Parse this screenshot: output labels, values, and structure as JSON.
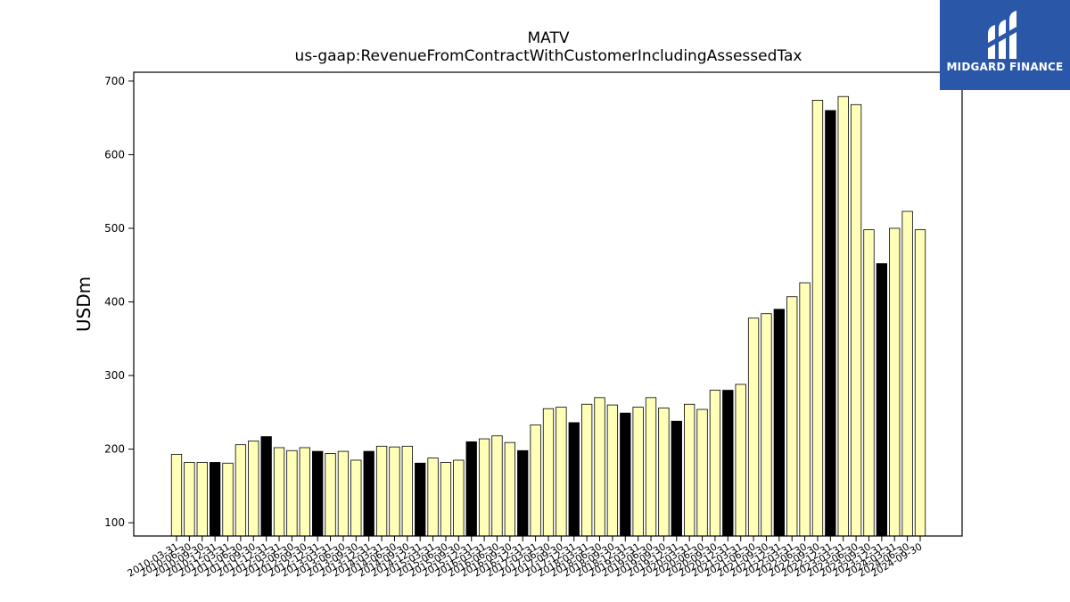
{
  "chart_data": {
    "type": "bar",
    "title": "MATV",
    "subtitle": "us-gaap:RevenueFromContractWithCustomerIncludingAssessedTax",
    "xlabel": "",
    "ylabel": "USDm",
    "ylim": [
      82,
      712
    ],
    "yticks": [
      100,
      200,
      300,
      400,
      500,
      600,
      700
    ],
    "grid": false,
    "colors": {
      "quarter": "#ffffb8",
      "annual": "#000000",
      "edge": "#000000"
    },
    "categories": [
      "2010-03-31",
      "2010-06-30",
      "2010-09-30",
      "2010-12-31",
      "2011-03-31",
      "2011-06-30",
      "2011-09-30",
      "2011-12-31",
      "2012-03-31",
      "2012-06-30",
      "2012-09-30",
      "2012-12-31",
      "2013-03-31",
      "2013-06-30",
      "2013-09-30",
      "2013-12-31",
      "2014-03-31",
      "2014-06-30",
      "2014-09-30",
      "2014-12-31",
      "2015-03-31",
      "2015-06-30",
      "2015-09-30",
      "2015-12-31",
      "2016-03-31",
      "2016-06-30",
      "2016-09-30",
      "2016-12-31",
      "2017-03-31",
      "2017-06-30",
      "2017-09-30",
      "2017-12-31",
      "2018-03-31",
      "2018-06-30",
      "2018-09-30",
      "2018-12-31",
      "2019-03-31",
      "2019-06-30",
      "2019-09-30",
      "2019-12-31",
      "2020-03-31",
      "2020-06-30",
      "2020-09-30",
      "2020-12-31",
      "2021-03-31",
      "2021-06-30",
      "2021-09-30",
      "2021-12-31",
      "2022-03-31",
      "2022-06-30",
      "2022-09-30",
      "2022-12-31",
      "2023-03-31",
      "2023-06-30",
      "2023-09-30",
      "2023-12-31",
      "2024-03-31",
      "2024-06-30",
      "2024-09-30"
    ],
    "values": [
      193,
      182,
      182,
      182,
      181,
      206,
      211,
      217,
      202,
      198,
      202,
      197,
      194,
      197,
      185,
      197,
      204,
      203,
      204,
      181,
      188,
      182,
      185,
      210,
      214,
      218,
      209,
      198,
      233,
      255,
      257,
      236,
      261,
      270,
      260,
      249,
      257,
      270,
      256,
      238,
      261,
      254,
      280,
      280,
      288,
      378,
      384,
      390,
      407,
      426,
      674,
      660,
      679,
      668,
      498,
      452,
      500,
      523,
      498
    ],
    "highlight": [
      false,
      false,
      false,
      true,
      false,
      false,
      false,
      true,
      false,
      false,
      false,
      true,
      false,
      false,
      false,
      true,
      false,
      false,
      false,
      true,
      false,
      false,
      false,
      true,
      false,
      false,
      false,
      true,
      false,
      false,
      false,
      true,
      false,
      false,
      false,
      true,
      false,
      false,
      false,
      true,
      false,
      false,
      false,
      true,
      false,
      false,
      false,
      true,
      false,
      false,
      false,
      true,
      false,
      false,
      false,
      true,
      false,
      false,
      false
    ]
  },
  "logo": {
    "text": "MIDGARD FINANCE"
  }
}
